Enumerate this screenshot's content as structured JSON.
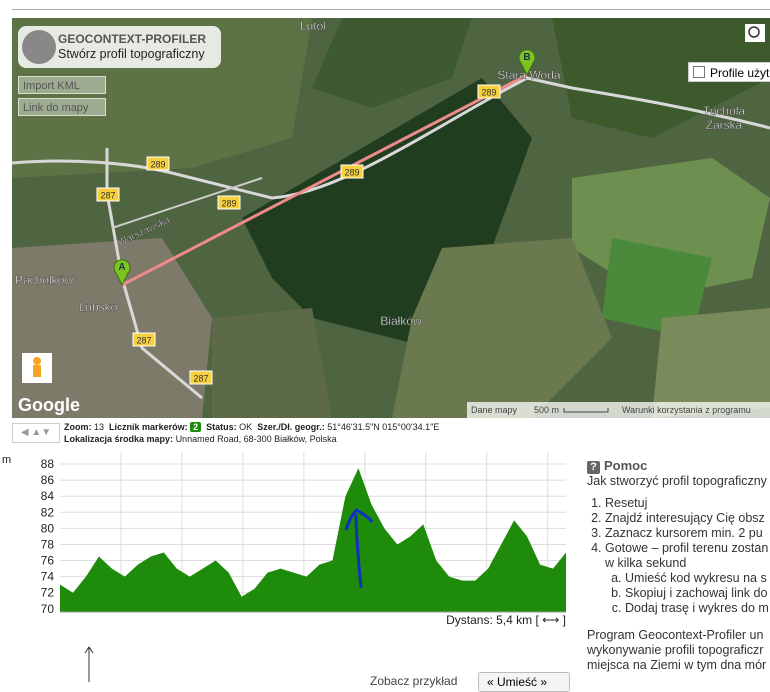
{
  "header": {
    "app_name": "GEOCONTEXT-PROFILER",
    "tagline": "Stwórz profil topograficzny",
    "import_kml": "Import KML",
    "map_link": "Link do mapy",
    "user_profiles": "Profile użyt"
  },
  "map": {
    "places": [
      "Lutol",
      "Stara Woda",
      "Tuchola",
      "Żarska",
      "Pacholków",
      "Lubsko",
      "Białków",
      "Warszawska"
    ],
    "road_numbers": [
      "289",
      "289",
      "289",
      "289",
      "287",
      "287",
      "287"
    ],
    "markers": [
      "A",
      "B"
    ],
    "google": "Google",
    "map_data": "Dane mapy",
    "scale": "500 m",
    "terms": "Warunki korzystania z programu"
  },
  "status_bar": {
    "zoom_label": "Zoom:",
    "zoom": "13",
    "markers_label": "Licznik markerów:",
    "markers": "2",
    "status_label": "Status:",
    "status": "OK",
    "coords_label": "Szer./Dł. geogr.:",
    "coords": "51°46'31.5\"N 015°00'34.1\"E",
    "center_label": "Lokalizacja środka mapy:",
    "center": "Unnamed Road, 68-300 Białków, Polska"
  },
  "chart_data": {
    "type": "area",
    "y_unit": "m",
    "x_label": "Dystans: 5,4 km [ ⟷ ]",
    "color": "#1e8c0a",
    "grid": true,
    "ylim": [
      69.6,
      89.5
    ],
    "yticks": [
      70,
      72,
      74,
      76,
      78,
      80,
      82,
      84,
      86,
      88
    ],
    "values": [
      73,
      72,
      74,
      76.5,
      75,
      74,
      75.5,
      76.5,
      77,
      75,
      74,
      75,
      76,
      74.5,
      71.5,
      72.5,
      74.5,
      75,
      74.5,
      74,
      75.5,
      76,
      84,
      87.5,
      83,
      80,
      78,
      79,
      80.5,
      76,
      74,
      73.5,
      73.5,
      75,
      78,
      81,
      79,
      75.5,
      75,
      77
    ]
  },
  "help": {
    "title": "Pomoc",
    "intro": "Jak stworzyć profil topograficzny",
    "steps": [
      "Resetuj",
      "Znajdź interesujący Cię obsz",
      "Zaznacz kursorem min. 2 pu",
      "Gotowe – profil terenu zostan w kilka sekund"
    ],
    "substeps": [
      "Umieść kod wykresu na s",
      "Skopiuj i zachowaj link do",
      "Dodaj trasę i wykres do m"
    ],
    "about": [
      "Program Geocontext-Profiler un",
      "wykonywanie profili topograficzr",
      "miejsca na Ziemi w tym dna mór"
    ]
  },
  "footer": {
    "example": "Zobacz przykład",
    "embed": "« Umieść »"
  }
}
